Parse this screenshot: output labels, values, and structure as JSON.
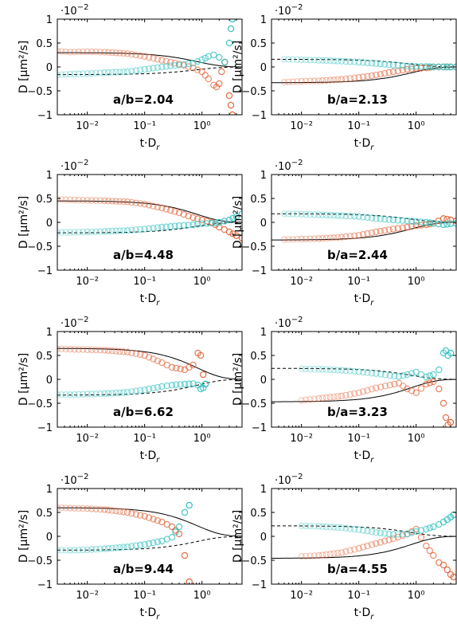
{
  "figure": {
    "xlabel": "t·D",
    "xlabel_sub": "r",
    "ylabel": "D [μm²/s]",
    "multiplier_base": "·10",
    "multiplier_exp": "−2",
    "x_tick_labels": [
      "10⁻²",
      "10⁻¹",
      "10⁰"
    ],
    "y_tick_labels": [
      "1",
      "0.5",
      "0",
      "−0.5",
      "−1"
    ]
  },
  "colors": {
    "orange": "#e2643a",
    "teal": "#35c3c1",
    "theory": "#000000"
  },
  "chart_data": [
    {
      "type": "scatter",
      "label": "a/b=2.04",
      "xscale": "log",
      "xlim": [
        0.003,
        5
      ],
      "ylim": [
        -1,
        1
      ],
      "y_multiplier": "1e-2",
      "series": [
        {
          "color": "orange",
          "x": [
            0.003,
            0.005,
            0.01,
            0.02,
            0.05,
            0.1,
            0.2,
            0.4,
            0.7,
            1.0,
            1.3,
            1.6,
            1.8,
            2.0,
            2.2,
            2.5,
            3.0,
            3.2,
            3.4
          ],
          "y": [
            0.33,
            0.31,
            0.32,
            0.31,
            0.28,
            0.22,
            0.14,
            0.06,
            -0.02,
            -0.1,
            -0.25,
            -0.38,
            -0.42,
            -0.35,
            -0.1,
            0.1,
            -0.6,
            -0.8,
            -1.0
          ]
        },
        {
          "color": "teal",
          "x": [
            0.003,
            0.005,
            0.01,
            0.02,
            0.05,
            0.1,
            0.2,
            0.4,
            0.7,
            1.0,
            1.3,
            1.6,
            2.0,
            2.5,
            3.0,
            3.2,
            3.4
          ],
          "y": [
            -0.17,
            -0.15,
            -0.14,
            -0.12,
            -0.1,
            -0.05,
            0.0,
            0.04,
            0.08,
            0.15,
            0.22,
            0.25,
            0.2,
            0.1,
            0.5,
            0.8,
            1.0
          ]
        }
      ],
      "theory": {
        "solid": [
          0.3,
          0.0
        ],
        "dashed": [
          -0.16,
          0.0
        ]
      }
    },
    {
      "type": "scatter",
      "label": "b/a=2.13",
      "xscale": "log",
      "xlim": [
        0.003,
        5
      ],
      "ylim": [
        -1,
        1
      ],
      "y_multiplier": "1e-2",
      "series": [
        {
          "color": "orange",
          "x": [
            0.005,
            0.01,
            0.02,
            0.05,
            0.1,
            0.2,
            0.4,
            0.7,
            1.0,
            1.5,
            2.0,
            3.0,
            4.0,
            5.0
          ],
          "y": [
            -0.32,
            -0.3,
            -0.29,
            -0.26,
            -0.22,
            -0.17,
            -0.1,
            -0.05,
            -0.03,
            -0.02,
            0.0,
            0.0,
            0.0,
            0.0
          ]
        },
        {
          "color": "teal",
          "x": [
            0.005,
            0.01,
            0.02,
            0.05,
            0.1,
            0.2,
            0.4,
            0.7,
            1.0,
            1.5,
            2.0,
            3.0,
            4.0,
            5.0
          ],
          "y": [
            0.16,
            0.15,
            0.14,
            0.12,
            0.1,
            0.07,
            0.04,
            0.02,
            0.01,
            0.01,
            0.0,
            0.0,
            0.0,
            0.0
          ]
        }
      ],
      "theory": {
        "solid": [
          -0.33,
          0.0
        ],
        "dashed": [
          0.16,
          0.0
        ]
      }
    },
    {
      "type": "scatter",
      "label": "a/b=4.48",
      "xscale": "log",
      "xlim": [
        0.003,
        5
      ],
      "ylim": [
        -1,
        1
      ],
      "y_multiplier": "1e-2",
      "series": [
        {
          "color": "orange",
          "x": [
            0.003,
            0.005,
            0.01,
            0.02,
            0.05,
            0.1,
            0.2,
            0.4,
            0.7,
            1.0,
            1.5,
            2.0,
            3.0,
            4.0,
            5.0
          ],
          "y": [
            0.48,
            0.47,
            0.46,
            0.45,
            0.43,
            0.38,
            0.3,
            0.2,
            0.1,
            0.05,
            0.0,
            -0.1,
            -0.2,
            -0.28,
            -0.33
          ]
        },
        {
          "color": "teal",
          "x": [
            0.003,
            0.005,
            0.01,
            0.02,
            0.05,
            0.1,
            0.2,
            0.4,
            0.7,
            1.0,
            1.5,
            2.0,
            3.0,
            4.0,
            5.0
          ],
          "y": [
            -0.21,
            -0.21,
            -0.2,
            -0.19,
            -0.17,
            -0.14,
            -0.1,
            -0.07,
            -0.05,
            -0.03,
            -0.02,
            0.0,
            0.05,
            0.12,
            0.18
          ]
        }
      ],
      "theory": {
        "solid": [
          0.45,
          0.0
        ],
        "dashed": [
          -0.22,
          0.0
        ]
      }
    },
    {
      "type": "scatter",
      "label": "b/a=2.44",
      "xscale": "log",
      "xlim": [
        0.003,
        5
      ],
      "ylim": [
        -1,
        1
      ],
      "y_multiplier": "1e-2",
      "series": [
        {
          "color": "orange",
          "x": [
            0.005,
            0.01,
            0.02,
            0.05,
            0.1,
            0.2,
            0.4,
            0.7,
            1.0,
            1.5,
            2.0,
            3.0,
            4.0,
            5.0
          ],
          "y": [
            -0.36,
            -0.35,
            -0.34,
            -0.31,
            -0.27,
            -0.2,
            -0.14,
            -0.1,
            -0.07,
            -0.05,
            -0.02,
            0.08,
            0.05,
            0.03
          ]
        },
        {
          "color": "teal",
          "x": [
            0.005,
            0.01,
            0.02,
            0.05,
            0.1,
            0.2,
            0.4,
            0.7,
            1.0,
            1.5,
            2.0,
            3.0,
            4.0,
            5.0
          ],
          "y": [
            0.18,
            0.17,
            0.16,
            0.14,
            0.12,
            0.08,
            0.05,
            0.03,
            0.02,
            0.0,
            -0.02,
            -0.05,
            -0.03,
            -0.02
          ]
        }
      ],
      "theory": {
        "solid": [
          -0.37,
          0.0
        ],
        "dashed": [
          0.18,
          0.0
        ]
      }
    },
    {
      "type": "scatter",
      "label": "a/b=6.62",
      "xscale": "log",
      "xlim": [
        0.003,
        5
      ],
      "ylim": [
        -1,
        1
      ],
      "y_multiplier": "1e-2",
      "series": [
        {
          "color": "orange",
          "x": [
            0.003,
            0.005,
            0.01,
            0.02,
            0.05,
            0.1,
            0.2,
            0.3,
            0.5,
            0.7,
            0.85,
            0.95,
            1.05,
            1.15
          ],
          "y": [
            0.64,
            0.63,
            0.62,
            0.61,
            0.57,
            0.5,
            0.35,
            0.25,
            0.2,
            0.3,
            0.55,
            0.5,
            0.1,
            -0.1
          ]
        },
        {
          "color": "teal",
          "x": [
            0.003,
            0.005,
            0.01,
            0.02,
            0.05,
            0.1,
            0.2,
            0.3,
            0.5,
            0.7,
            0.85,
            0.95,
            1.05,
            1.15
          ],
          "y": [
            -0.32,
            -0.32,
            -0.31,
            -0.3,
            -0.27,
            -0.22,
            -0.15,
            -0.12,
            -0.1,
            -0.09,
            -0.12,
            -0.2,
            -0.18,
            -0.1
          ]
        }
      ],
      "theory": {
        "solid": [
          0.65,
          0.0
        ],
        "dashed": [
          -0.33,
          0.0
        ]
      }
    },
    {
      "type": "scatter",
      "label": "b/a=3.23",
      "xscale": "log",
      "xlim": [
        0.003,
        5
      ],
      "ylim": [
        -1,
        1
      ],
      "y_multiplier": "1e-2",
      "series": [
        {
          "color": "orange",
          "x": [
            0.01,
            0.02,
            0.05,
            0.1,
            0.2,
            0.35,
            0.5,
            0.7,
            1.0,
            1.5,
            2.0,
            2.5,
            3.0,
            3.3,
            3.6,
            4.0
          ],
          "y": [
            -0.44,
            -0.4,
            -0.35,
            -0.28,
            -0.18,
            -0.12,
            -0.08,
            -0.2,
            -0.28,
            -0.1,
            -0.05,
            -0.2,
            -0.5,
            -0.8,
            -0.95,
            -0.9
          ]
        },
        {
          "color": "teal",
          "x": [
            0.01,
            0.02,
            0.05,
            0.1,
            0.2,
            0.35,
            0.5,
            0.7,
            1.0,
            1.5,
            2.0,
            2.5,
            3.0,
            3.3,
            3.6,
            4.0
          ],
          "y": [
            0.22,
            0.21,
            0.19,
            0.16,
            0.12,
            0.08,
            0.06,
            0.1,
            0.15,
            0.05,
            0.1,
            0.2,
            0.55,
            0.6,
            0.5,
            0.55
          ]
        }
      ],
      "theory": {
        "solid": [
          -0.47,
          0.0
        ],
        "dashed": [
          0.23,
          0.0
        ]
      }
    },
    {
      "type": "scatter",
      "label": "a/b=9.44",
      "xscale": "log",
      "xlim": [
        0.003,
        5
      ],
      "ylim": [
        -1,
        1
      ],
      "y_multiplier": "1e-2",
      "series": [
        {
          "color": "orange",
          "x": [
            0.003,
            0.005,
            0.01,
            0.02,
            0.05,
            0.1,
            0.2,
            0.3,
            0.4,
            0.5,
            0.6
          ],
          "y": [
            0.6,
            0.59,
            0.58,
            0.56,
            0.5,
            0.42,
            0.3,
            0.2,
            0.05,
            -0.4,
            -0.95
          ]
        },
        {
          "color": "teal",
          "x": [
            0.003,
            0.005,
            0.01,
            0.02,
            0.05,
            0.1,
            0.2,
            0.3,
            0.4,
            0.5,
            0.6
          ],
          "y": [
            -0.29,
            -0.29,
            -0.28,
            -0.26,
            -0.22,
            -0.17,
            -0.1,
            -0.02,
            0.2,
            0.5,
            0.65
          ]
        }
      ],
      "theory": {
        "solid": [
          0.6,
          0.0
        ],
        "dashed": [
          -0.29,
          0.0
        ]
      }
    },
    {
      "type": "scatter",
      "label": "b/a=4.55",
      "xscale": "log",
      "xlim": [
        0.003,
        5
      ],
      "ylim": [
        -1,
        1
      ],
      "y_multiplier": "1e-2",
      "series": [
        {
          "color": "orange",
          "x": [
            0.01,
            0.02,
            0.05,
            0.1,
            0.2,
            0.4,
            0.7,
            1.0,
            1.5,
            2.0,
            2.5,
            3.0,
            3.5,
            4.0,
            4.5
          ],
          "y": [
            -0.42,
            -0.4,
            -0.34,
            -0.25,
            -0.15,
            -0.05,
            0.05,
            0.15,
            -0.2,
            -0.4,
            -0.55,
            -0.6,
            -0.7,
            -0.8,
            -0.85
          ]
        },
        {
          "color": "teal",
          "x": [
            0.01,
            0.02,
            0.05,
            0.1,
            0.2,
            0.4,
            0.7,
            1.0,
            1.5,
            2.0,
            2.5,
            3.0,
            3.5,
            4.0,
            4.5
          ],
          "y": [
            0.22,
            0.21,
            0.18,
            0.14,
            0.08,
            0.04,
            0.05,
            0.1,
            0.15,
            0.2,
            0.25,
            0.3,
            0.35,
            0.4,
            0.45
          ]
        }
      ],
      "theory": {
        "solid": [
          -0.46,
          0.0
        ],
        "dashed": [
          0.22,
          0.0
        ]
      }
    }
  ]
}
